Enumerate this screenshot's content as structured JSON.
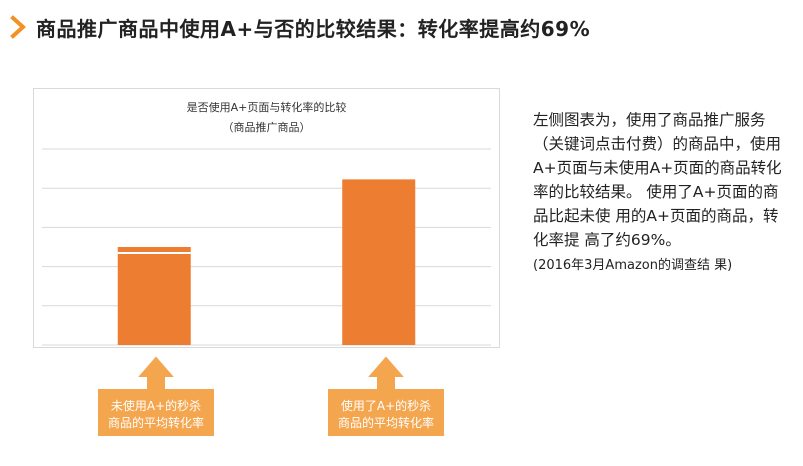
{
  "header": {
    "title": "商品推广商品中使用A+与否的比较结果：转化率提高约69%"
  },
  "chart_data": {
    "type": "bar",
    "title": "是否使用A+页面与转化率的比较",
    "subtitle": "（商品推广商品）",
    "categories": [
      "未使用A+",
      "使用了A+"
    ],
    "values": [
      1.0,
      1.69
    ],
    "ylim": [
      0,
      2.0
    ],
    "grid": true,
    "bar_color": "#ed7d31"
  },
  "description": {
    "main": "左侧图表为，使用了商品推广服务（关键词点击付费）的商品中，使用A+页面与未使用A+页面的商品转化率的比较结果。 使用了A+页面的商品比起未使 用的A+页面的商品，转化率提 高了约69%。",
    "note": "(2016年3月Amazon的调查结 果)"
  },
  "callouts": [
    {
      "line1": "未使用A+的秒杀",
      "line2": "商品的平均转化率"
    },
    {
      "line1": "使用了A+的秒杀",
      "line2": "商品的平均转化率"
    }
  ],
  "colors": {
    "accent": "#f29124",
    "bar": "#ed7d31",
    "callout_fill": "#f4a64f",
    "callout_border": "#ffffff"
  }
}
